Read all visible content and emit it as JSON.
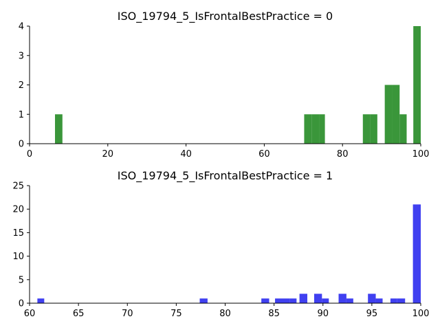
{
  "chart_data": [
    {
      "type": "bar",
      "title": "ISO_19794_5_IsFrontalBestPractice = 0",
      "xlabel": "",
      "ylabel": "",
      "xlim": [
        0,
        100
      ],
      "ylim": [
        0,
        4
      ],
      "xticks": [
        0,
        20,
        40,
        60,
        80,
        100
      ],
      "yticks": [
        0,
        1,
        2,
        3,
        4
      ],
      "grid": false,
      "bar_color": "#3a963a",
      "bins": [
        {
          "x0": 6.5,
          "x1": 8.4,
          "count": 1
        },
        {
          "x0": 70.2,
          "x1": 72.1,
          "count": 1
        },
        {
          "x0": 72.1,
          "x1": 74.0,
          "count": 1
        },
        {
          "x0": 74.0,
          "x1": 75.5,
          "count": 1
        },
        {
          "x0": 85.2,
          "x1": 87.1,
          "count": 1
        },
        {
          "x0": 87.1,
          "x1": 88.9,
          "count": 1
        },
        {
          "x0": 90.8,
          "x1": 92.7,
          "count": 2
        },
        {
          "x0": 92.7,
          "x1": 94.6,
          "count": 2
        },
        {
          "x0": 94.6,
          "x1": 96.4,
          "count": 1
        },
        {
          "x0": 98.1,
          "x1": 100.0,
          "count": 4
        }
      ]
    },
    {
      "type": "bar",
      "title": "ISO_19794_5_IsFrontalBestPractice = 1",
      "xlabel": "",
      "ylabel": "",
      "xlim": [
        60,
        100
      ],
      "ylim": [
        0,
        25
      ],
      "xticks": [
        60,
        65,
        70,
        75,
        80,
        85,
        90,
        95,
        100
      ],
      "yticks": [
        0,
        5,
        10,
        15,
        20,
        25
      ],
      "grid": false,
      "bar_color": "#4040f0",
      "bins": [
        {
          "x0": 60.8,
          "x1": 61.5,
          "count": 1
        },
        {
          "x0": 77.4,
          "x1": 78.2,
          "count": 1
        },
        {
          "x0": 83.7,
          "x1": 84.5,
          "count": 1
        },
        {
          "x0": 85.1,
          "x1": 85.8,
          "count": 1
        },
        {
          "x0": 85.8,
          "x1": 86.6,
          "count": 1
        },
        {
          "x0": 86.6,
          "x1": 87.3,
          "count": 1
        },
        {
          "x0": 87.6,
          "x1": 88.4,
          "count": 2
        },
        {
          "x0": 89.1,
          "x1": 89.9,
          "count": 2
        },
        {
          "x0": 89.9,
          "x1": 90.6,
          "count": 1
        },
        {
          "x0": 91.6,
          "x1": 92.4,
          "count": 2
        },
        {
          "x0": 92.4,
          "x1": 93.1,
          "count": 1
        },
        {
          "x0": 94.6,
          "x1": 95.4,
          "count": 2
        },
        {
          "x0": 95.4,
          "x1": 96.1,
          "count": 1
        },
        {
          "x0": 96.9,
          "x1": 97.6,
          "count": 1
        },
        {
          "x0": 97.6,
          "x1": 98.4,
          "count": 1
        },
        {
          "x0": 99.2,
          "x1": 100.0,
          "count": 21
        }
      ]
    }
  ]
}
